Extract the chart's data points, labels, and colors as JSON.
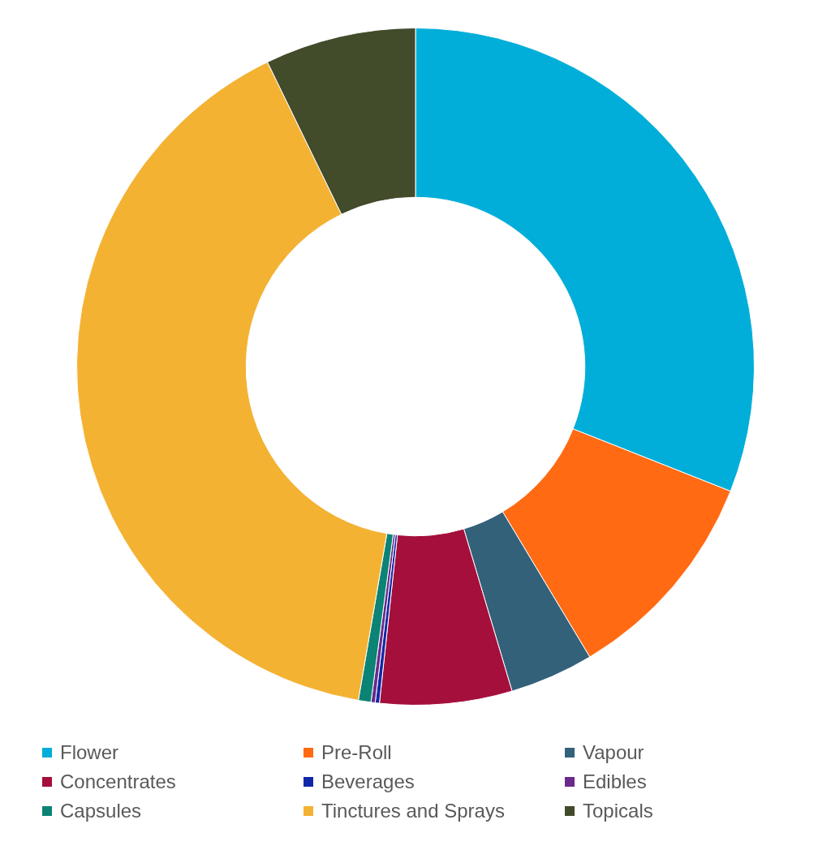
{
  "chart_data": {
    "type": "donut",
    "categories": [
      "Flower",
      "Pre-Roll",
      "Vapour",
      "Concentrates",
      "Beverages",
      "Edibles",
      "Capsules",
      "Tinctures and Sprays",
      "Topicals"
    ],
    "values": [
      31.0,
      10.4,
      4.0,
      6.3,
      0.2,
      0.2,
      0.6,
      40.1,
      7.2
    ],
    "colors": [
      "#00aed9",
      "#ff6a13",
      "#336179",
      "#a50f3c",
      "#1227a8",
      "#6a2a8a",
      "#0b8375",
      "#f4b233",
      "#424b2a"
    ],
    "legend": "bottom"
  }
}
